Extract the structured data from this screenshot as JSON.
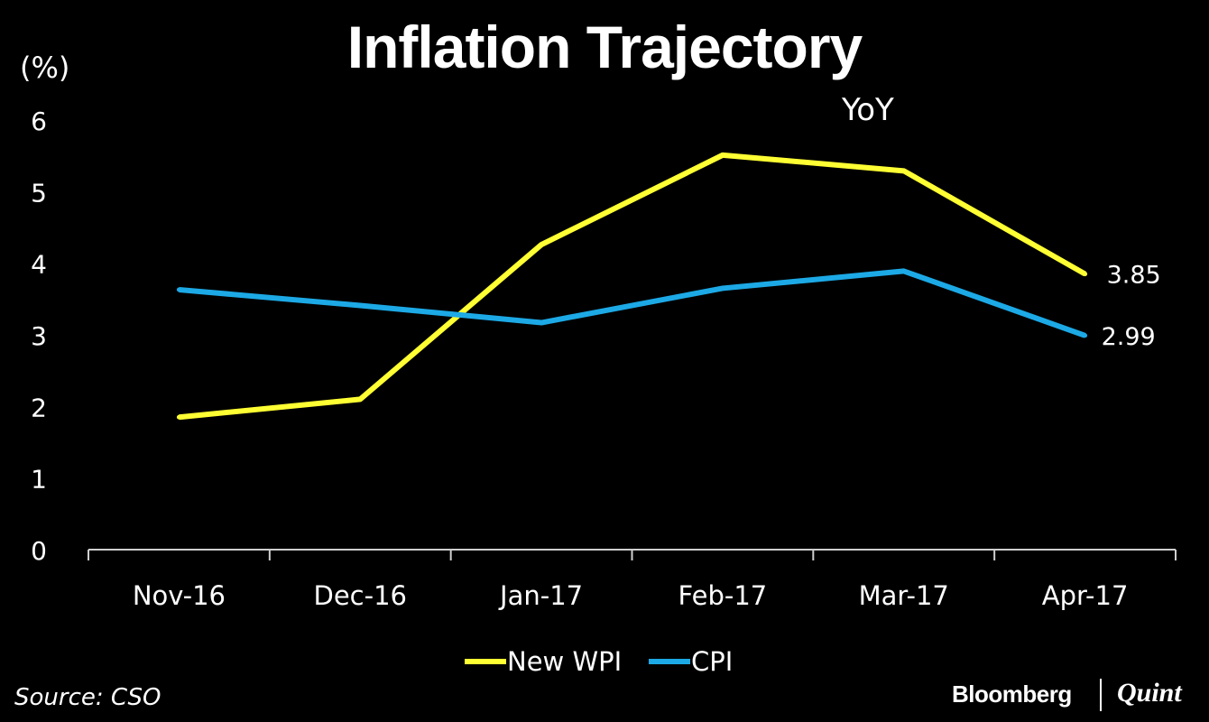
{
  "chart_data": {
    "type": "line",
    "title": "Inflation Trajectory",
    "subtitle": "YoY",
    "ylabel": "(%)",
    "xlabel": "",
    "ylim": [
      0,
      6
    ],
    "yticks": [
      0,
      1,
      2,
      3,
      4,
      5,
      6
    ],
    "categories": [
      "Nov-16",
      "Dec-16",
      "Jan-17",
      "Feb-17",
      "Mar-17",
      "Apr-17"
    ],
    "series": [
      {
        "name": "New WPI",
        "color": "#FFFF33",
        "values": [
          1.85,
          2.1,
          4.26,
          5.51,
          5.29,
          3.85
        ],
        "end_label": "3.85"
      },
      {
        "name": "CPI",
        "color": "#1CA9E6",
        "values": [
          3.63,
          3.41,
          3.17,
          3.65,
          3.89,
          2.99
        ],
        "end_label": "2.99"
      }
    ],
    "legend": {
      "position": "bottom-center"
    },
    "grid": false
  },
  "source": "Source: CSO",
  "brand": {
    "primary": "Bloomberg",
    "secondary": "Quint"
  }
}
